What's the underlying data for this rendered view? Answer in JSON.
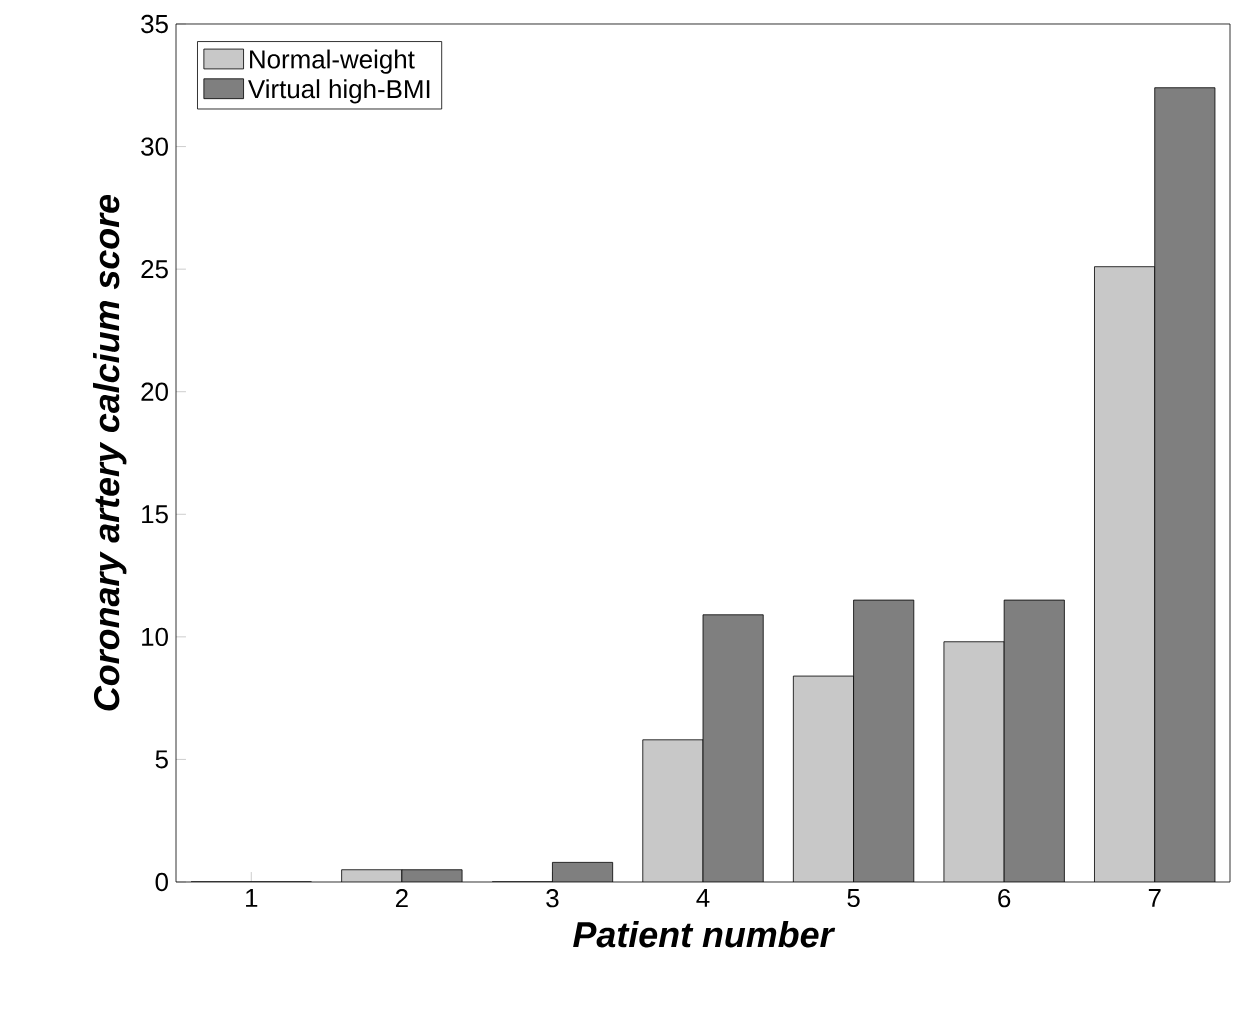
{
  "chart_data": {
    "type": "bar",
    "xlabel": "Patient number",
    "ylabel": "Coronary artery calcium score",
    "categories": [
      "1",
      "2",
      "3",
      "4",
      "5",
      "6",
      "7"
    ],
    "series": [
      {
        "name": "Normal-weight",
        "color": "#c8c8c8",
        "values": [
          0,
          0.5,
          0,
          5.8,
          8.4,
          9.8,
          25.1
        ]
      },
      {
        "name": "Virtual high-BMI",
        "color": "#7f7f7f",
        "values": [
          0,
          0.5,
          0.8,
          10.9,
          11.5,
          11.5,
          32.4
        ]
      }
    ],
    "ylim": [
      0,
      35
    ],
    "yticks": [
      0,
      5,
      10,
      15,
      20,
      25,
      30,
      35
    ],
    "legend": "top left",
    "grid": false
  }
}
